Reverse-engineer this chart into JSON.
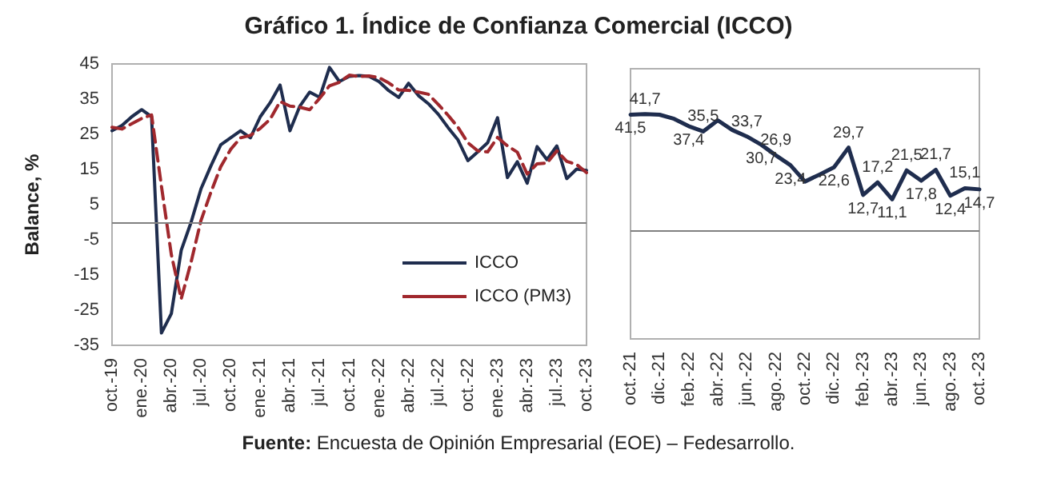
{
  "chart_data": [
    {
      "type": "line",
      "title": "Gráfico 1. Índice de Confianza Comercial (ICCO)",
      "ylabel": "Balance, %",
      "annotations": [
        "Fuente: Encuesta de Opinión Empresarial (EOE) – Fedesarrollo."
      ],
      "categories": [
        "oct.-19",
        null,
        null,
        "ene.-20",
        null,
        null,
        "abr.-20",
        null,
        null,
        "jul.-20",
        null,
        null,
        "oct.-20",
        null,
        null,
        "ene.-21",
        null,
        null,
        "abr.-21",
        null,
        null,
        "jul.-21",
        null,
        null,
        "oct.-21",
        null,
        null,
        "ene.-22",
        null,
        null,
        "abr.-22",
        null,
        null,
        "jul.-22",
        null,
        null,
        "oct.-22",
        null,
        null,
        "ene.-23",
        null,
        null,
        "abr.-23",
        null,
        null,
        "jul.-23",
        null,
        null,
        "oct.-23"
      ],
      "series": [
        {
          "name": "ICCO",
          "color": "#1f2d4e",
          "line_style": "solid",
          "values": [
            26,
            27.5,
            30,
            32,
            30,
            -31.5,
            -26,
            -8,
            0,
            9.5,
            16,
            22,
            24,
            26,
            24,
            30,
            34,
            39,
            26,
            33,
            37,
            35.5,
            44,
            40,
            41.5,
            41.7,
            41.5,
            40,
            37.4,
            35.5,
            39.5,
            36,
            33.7,
            30.7,
            26.9,
            23.4,
            17.5,
            20,
            22.6,
            29.7,
            12.7,
            17.2,
            11.1,
            21.5,
            17.8,
            21.7,
            12.4,
            15.1,
            14.7
          ]
        },
        {
          "name": "ICCO (PM3)",
          "color": "#a0282d",
          "line_style": "dashed",
          "values": [
            27,
            26.5,
            28,
            29.5,
            30.5,
            10.2,
            -9.2,
            -21.8,
            -11.3,
            0.5,
            8.5,
            15.8,
            20.7,
            24,
            24.7,
            26.7,
            29.3,
            34.3,
            33,
            32.7,
            32,
            35.2,
            38.8,
            39.8,
            41.8,
            41.4,
            41.6,
            41.1,
            39.6,
            37.6,
            37.5,
            37,
            36.4,
            33.5,
            30.4,
            27,
            22.6,
            20.3,
            20,
            24.1,
            21.7,
            19.9,
            13.7,
            16.6,
            16.8,
            20.3,
            17.3,
            16.4,
            14.1
          ]
        }
      ],
      "ylim": [
        -35,
        45
      ],
      "yticks": [
        -35,
        -25,
        -15,
        -5,
        5,
        15,
        25,
        35,
        45
      ],
      "ref_lines": [
        {
          "axis": "y",
          "value": 0,
          "color": "#808080"
        }
      ],
      "marker": "none",
      "grid": false,
      "legend": "bottom right"
    },
    {
      "type": "line",
      "categories": [
        "oct.-21",
        null,
        "dic.-21",
        null,
        "feb.-22",
        null,
        "abr.-22",
        null,
        "jun.-22",
        null,
        "ago.-22",
        null,
        "oct.-22",
        null,
        "dic.-22",
        null,
        "feb.-23",
        null,
        "abr.-23",
        null,
        "jun.-23",
        null,
        "ago.-23",
        null,
        "oct.-23"
      ],
      "series": [
        {
          "color": "#1f2d4e",
          "line_style": "solid",
          "values": [
            41.5,
            41.7,
            41.5,
            40,
            37.4,
            35.5,
            39.5,
            36,
            33.7,
            30.7,
            26.9,
            23.4,
            17.5,
            20,
            22.6,
            29.7,
            12.7,
            17.2,
            11.1,
            21.5,
            17.8,
            21.7,
            12.4,
            15.1,
            14.7
          ],
          "value_labels": [
            "41,5",
            "41,7",
            null,
            null,
            "37,4",
            "35,5",
            null,
            null,
            "33,7",
            "30,7",
            "26,9",
            "23,4",
            null,
            null,
            "22,6",
            "29,7",
            "12,7",
            "17,2",
            "11,1",
            "21,5",
            "17,8",
            "21,7",
            "12,4",
            "15,1",
            "14,7"
          ]
        }
      ],
      "ylim": [
        -39,
        58
      ],
      "ref_lines": [
        {
          "axis": "y",
          "value": 0,
          "color": "#808080"
        }
      ],
      "marker": "none",
      "grid": false,
      "legend": false,
      "tick_labels": "x"
    }
  ]
}
